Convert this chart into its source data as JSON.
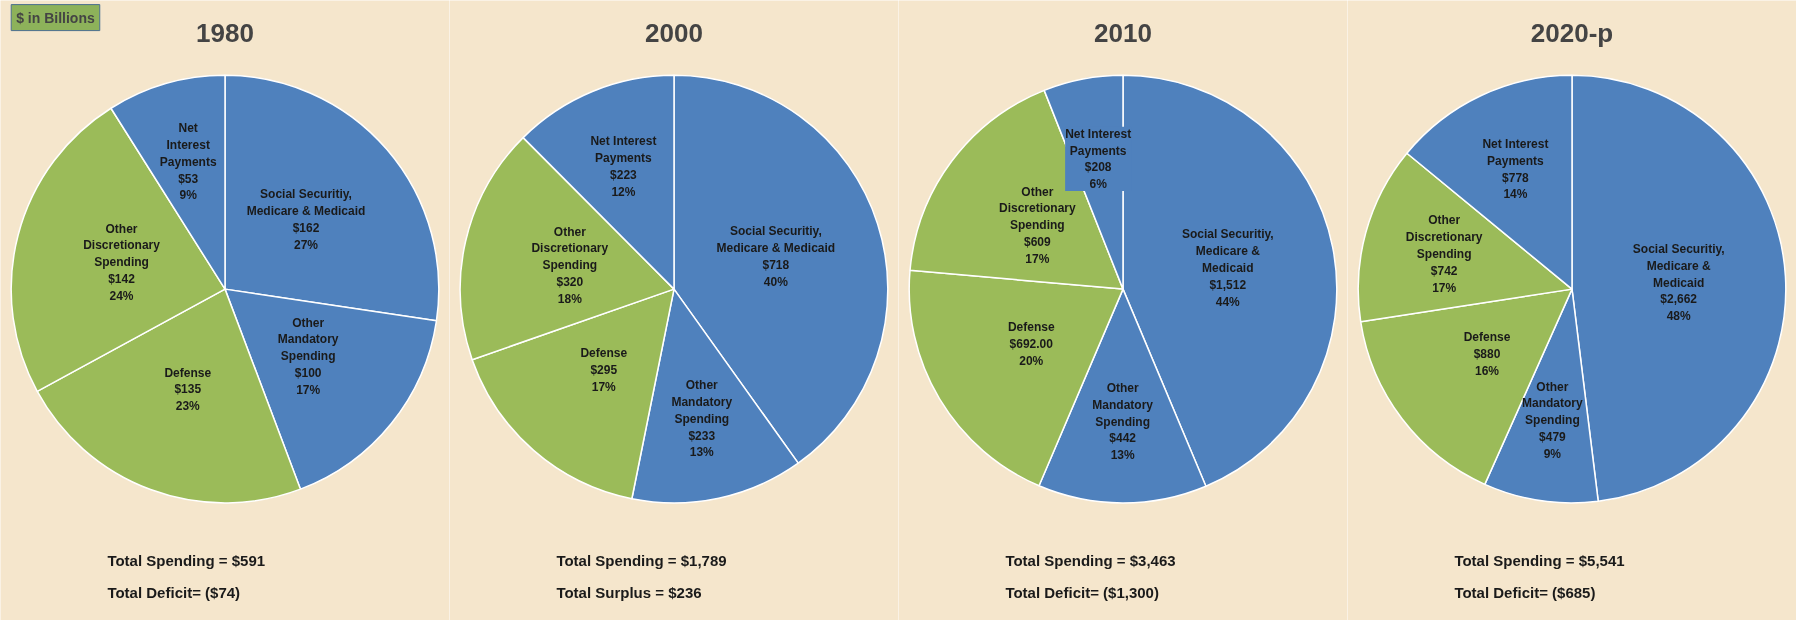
{
  "chart_data": [
    {
      "type": "pie",
      "title": "1980",
      "categories": [
        "Social Securitiy,\nMedicare & Medicaid",
        "Other\nMandatory\nSpending",
        "Defense",
        "Other\nDiscretionary\nSpending",
        "Net\nInterest\nPayments"
      ],
      "values": [
        162,
        100,
        135,
        142,
        53
      ],
      "colors": [
        "#4f81bd",
        "#4f81bd",
        "#9bbb59",
        "#9bbb59",
        "#4f81bd"
      ],
      "value_labels": [
        "$162\n27%",
        "$100\n17%",
        "$135\n23%",
        "$142\n24%",
        "$53\n9%"
      ],
      "annotations": [
        "$ in Billions",
        "Total Spending = $591",
        "Total Deficit= ($74)"
      ]
    },
    {
      "type": "pie",
      "title": "2000",
      "categories": [
        "Social Securitiy,\nMedicare & Medicaid",
        "Other\nMandatory\nSpending",
        "Defense",
        "Other\nDiscretionary\nSpending",
        "Net Interest\nPayments"
      ],
      "values": [
        718,
        233,
        295,
        320,
        223
      ],
      "colors": [
        "#4f81bd",
        "#4f81bd",
        "#9bbb59",
        "#9bbb59",
        "#4f81bd"
      ],
      "value_labels": [
        "$718\n40%",
        "$233\n13%",
        "$295\n17%",
        "$320\n18%",
        "$223\n12%"
      ],
      "annotations": [
        "Total Spending = $1,789",
        "Total Surplus = $236"
      ]
    },
    {
      "type": "pie",
      "title": "2010",
      "categories": [
        "Social Securitiy,\nMedicare &\nMedicaid",
        "Other\nMandatory\nSpending",
        "Defense",
        "Other\nDiscretionary\nSpending",
        "Net Interest\nPayments"
      ],
      "values": [
        1512,
        442,
        692.0,
        609,
        208
      ],
      "colors": [
        "#4f81bd",
        "#4f81bd",
        "#9bbb59",
        "#9bbb59",
        "#4f81bd"
      ],
      "value_labels": [
        "$1,512\n44%",
        "$442\n13%",
        "$692.00\n20%",
        "$609\n17%",
        "$208\n6%"
      ],
      "annotations": [
        "Total Spending = $3,463",
        "Total Deficit= ($1,300)"
      ]
    },
    {
      "type": "pie",
      "title": "2020-p",
      "categories": [
        "Social Securitiy,\nMedicare &\nMedicaid",
        "Other\nMandatory\nSpending",
        "Defense",
        "Other\nDiscretionary\nSpending",
        "Net Interest\nPayments"
      ],
      "values": [
        2662,
        479,
        880,
        742,
        778
      ],
      "colors": [
        "#4f81bd",
        "#4f81bd",
        "#9bbb59",
        "#9bbb59",
        "#4f81bd"
      ],
      "value_labels": [
        "$2,662\n48%",
        "$479\n9%",
        "$880\n16%",
        "$742\n17%",
        "$778\n14%"
      ],
      "annotations": [
        "Total Spending = $5,541",
        "Total Deficit= ($685)"
      ]
    }
  ]
}
